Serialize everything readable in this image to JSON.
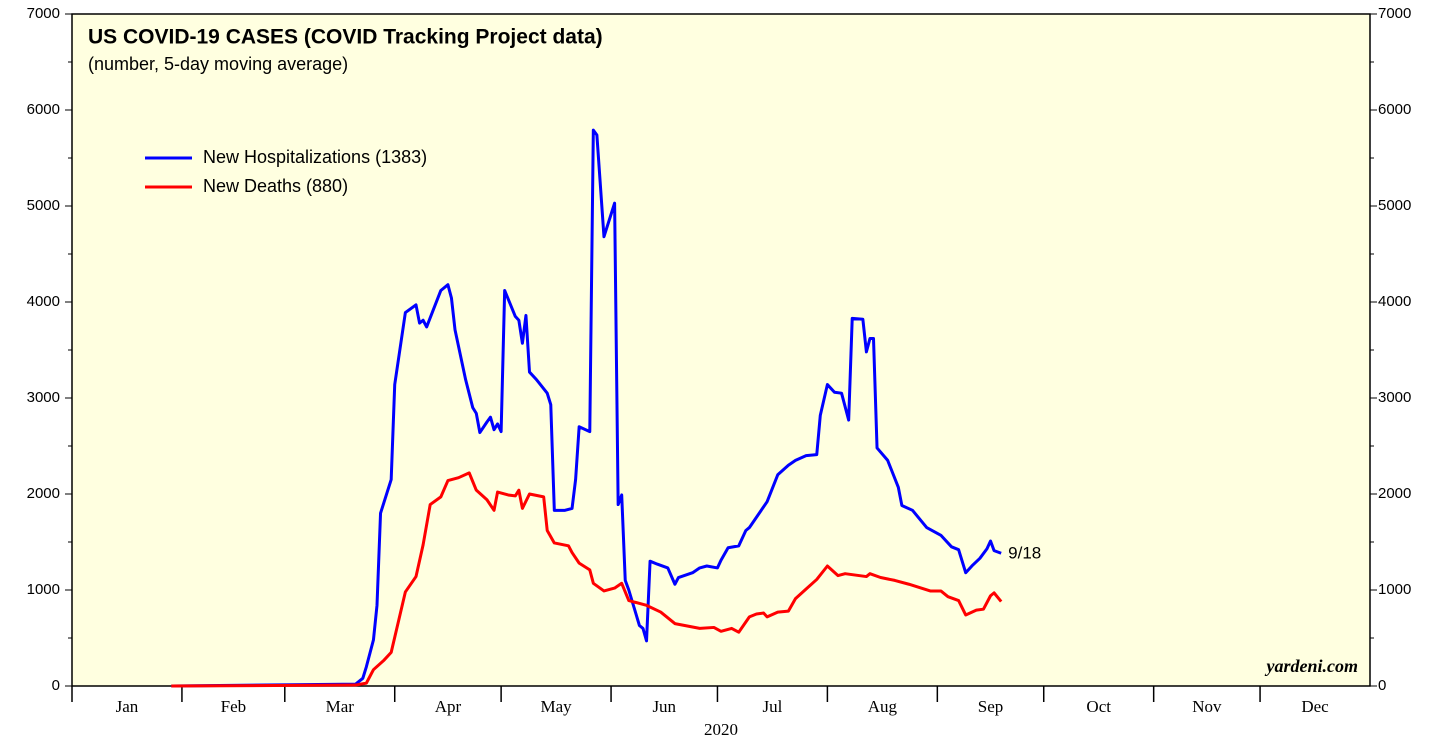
{
  "chart_data": {
    "type": "line",
    "title": "US COVID-19 CASES (COVID Tracking Project data)",
    "subtitle": "(number, 5-day moving average)",
    "xlabel": "2020",
    "source": "yardeni.com",
    "annotation": "9/18",
    "xlim": [
      0,
      366
    ],
    "xticks": [
      {
        "value": 0,
        "label": "Jan"
      },
      {
        "value": 31,
        "label": "Feb"
      },
      {
        "value": 60,
        "label": "Mar"
      },
      {
        "value": 91,
        "label": "Apr"
      },
      {
        "value": 121,
        "label": "May"
      },
      {
        "value": 152,
        "label": "Jun"
      },
      {
        "value": 182,
        "label": "Jul"
      },
      {
        "value": 213,
        "label": "Aug"
      },
      {
        "value": 244,
        "label": "Sep"
      },
      {
        "value": 274,
        "label": "Oct"
      },
      {
        "value": 305,
        "label": "Nov"
      },
      {
        "value": 335,
        "label": "Dec"
      }
    ],
    "ylim": [
      0,
      7000
    ],
    "yticks": [
      0,
      1000,
      2000,
      3000,
      4000,
      5000,
      6000,
      7000
    ],
    "yminorticks": [
      500,
      1500,
      2500,
      3500,
      4500,
      5500,
      6500
    ],
    "y2lim": [
      0,
      7000
    ],
    "y2ticks": [
      0,
      1000,
      2000,
      3000,
      4000,
      5000,
      6000,
      7000
    ],
    "legend": "upper left",
    "series": [
      {
        "name": "New Hospitalizations (1383)",
        "color": "#0000ff",
        "x": [
          28,
          80,
          82,
          83,
          85,
          86,
          87,
          90,
          91,
          94,
          97,
          98,
          99,
          100,
          104,
          106,
          107,
          108,
          111,
          113,
          114,
          115,
          117,
          118,
          119,
          120,
          121,
          122,
          125,
          126,
          127,
          128,
          129,
          131,
          134,
          135,
          136,
          139,
          141,
          142,
          143,
          146,
          147,
          148,
          150,
          153,
          154,
          155,
          156,
          157,
          160,
          161,
          162,
          163,
          165,
          168,
          170,
          171,
          175,
          177,
          179,
          182,
          183,
          185,
          188,
          190,
          191,
          196,
          199,
          202,
          204,
          207,
          210,
          211,
          213,
          215,
          217,
          219,
          220,
          223,
          224,
          225,
          226,
          227,
          230,
          233,
          234,
          237,
          241,
          245,
          248,
          250,
          252,
          254,
          256,
          258,
          259,
          260,
          262
        ],
        "values": [
          0,
          20,
          80,
          200,
          480,
          840,
          1800,
          2150,
          3140,
          3890,
          3970,
          3780,
          3810,
          3740,
          4120,
          4180,
          4040,
          3710,
          3190,
          2900,
          2840,
          2640,
          2750,
          2800,
          2670,
          2730,
          2650,
          4120,
          3850,
          3810,
          3570,
          3860,
          3270,
          3190,
          3050,
          2930,
          1830,
          1830,
          1850,
          2150,
          2700,
          2650,
          5790,
          5740,
          4680,
          5030,
          1890,
          1990,
          1100,
          1000,
          630,
          600,
          470,
          1300,
          1270,
          1230,
          1060,
          1130,
          1180,
          1230,
          1250,
          1230,
          1310,
          1440,
          1460,
          1620,
          1650,
          1920,
          2200,
          2300,
          2350,
          2400,
          2410,
          2820,
          3140,
          3060,
          3050,
          2770,
          3830,
          3820,
          3480,
          3620,
          3620,
          2480,
          2350,
          2070,
          1880,
          1830,
          1650,
          1570,
          1450,
          1420,
          1180,
          1260,
          1330,
          1430,
          1510,
          1410,
          1383
        ]
      },
      {
        "name": "New Deaths (880)",
        "color": "#ff0000",
        "x": [
          28,
          80,
          83,
          85,
          88,
          90,
          94,
          97,
          99,
          101,
          104,
          106,
          109,
          112,
          114,
          117,
          119,
          120,
          123,
          125,
          126,
          127,
          129,
          133,
          134,
          136,
          140,
          141,
          143,
          146,
          147,
          150,
          153,
          155,
          157,
          162,
          166,
          170,
          177,
          181,
          183,
          186,
          188,
          191,
          193,
          195,
          196,
          199,
          202,
          204,
          207,
          210,
          213,
          216,
          218,
          224,
          225,
          228,
          232,
          236,
          242,
          245,
          247,
          250,
          252,
          255,
          257,
          259,
          260,
          262
        ],
        "values": [
          0,
          10,
          30,
          170,
          270,
          350,
          980,
          1140,
          1470,
          1890,
          1970,
          2140,
          2170,
          2220,
          2040,
          1940,
          1830,
          2020,
          1990,
          1980,
          2040,
          1850,
          2000,
          1970,
          1620,
          1490,
          1460,
          1390,
          1280,
          1210,
          1070,
          990,
          1020,
          1070,
          890,
          840,
          770,
          650,
          600,
          610,
          570,
          600,
          560,
          720,
          750,
          760,
          720,
          770,
          780,
          910,
          1010,
          1110,
          1250,
          1150,
          1170,
          1140,
          1170,
          1130,
          1100,
          1060,
          990,
          990,
          930,
          890,
          740,
          790,
          800,
          940,
          970,
          880
        ]
      }
    ]
  }
}
